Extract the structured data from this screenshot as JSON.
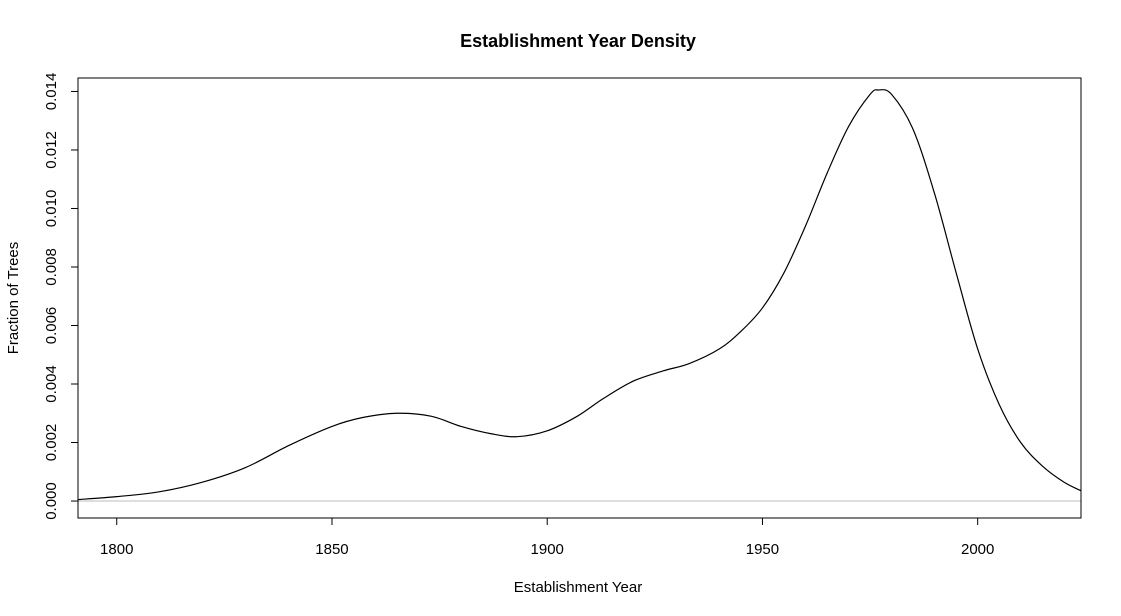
{
  "chart_data": {
    "type": "line",
    "title": "Establishment Year Density",
    "xlabel": "Establishment Year",
    "ylabel": "Fraction of Trees",
    "xlim": [
      1791,
      2024
    ],
    "ylim": [
      -0.00058,
      0.01446
    ],
    "x_ticks": [
      1800,
      1850,
      1900,
      1950,
      2000
    ],
    "x_tick_labels": [
      "1800",
      "1850",
      "1900",
      "1950",
      "2000"
    ],
    "y_ticks": [
      0.0,
      0.002,
      0.004,
      0.006,
      0.008,
      0.01,
      0.012,
      0.014
    ],
    "y_tick_labels": [
      "0.000",
      "0.002",
      "0.004",
      "0.006",
      "0.008",
      "0.010",
      "0.012",
      "0.014"
    ],
    "baseline": 0,
    "baseline_color": "#bebebe",
    "line_color": "#000000",
    "grid": false,
    "legend": "none",
    "series": [
      {
        "x": [
          1791,
          1800,
          1810,
          1820,
          1830,
          1840,
          1850,
          1857,
          1865,
          1873,
          1880,
          1887,
          1893,
          1900,
          1907,
          1913,
          1920,
          1927,
          1933,
          1940,
          1945,
          1950,
          1955,
          1960,
          1965,
          1970,
          1975,
          1977,
          1980,
          1985,
          1990,
          1995,
          2000,
          2005,
          2010,
          2015,
          2020,
          2024
        ],
        "y": [
          5e-05,
          0.00015,
          0.00032,
          0.00065,
          0.00115,
          0.0019,
          0.00255,
          0.00285,
          0.003,
          0.0029,
          0.00255,
          0.0023,
          0.0022,
          0.0024,
          0.0029,
          0.0035,
          0.0041,
          0.00445,
          0.0047,
          0.0052,
          0.0058,
          0.0066,
          0.0078,
          0.0094,
          0.0112,
          0.0128,
          0.0139,
          0.01405,
          0.0139,
          0.0127,
          0.0105,
          0.0078,
          0.0052,
          0.0033,
          0.002,
          0.0012,
          0.00065,
          0.00035
        ]
      }
    ]
  }
}
